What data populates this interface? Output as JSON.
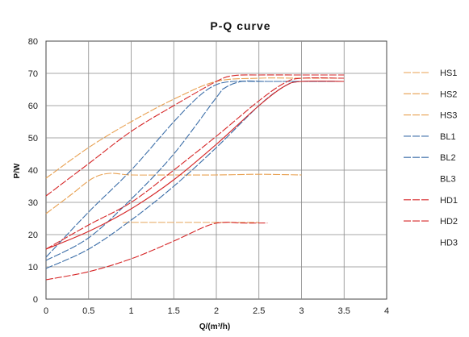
{
  "chart_data": {
    "type": "line",
    "title": "P-Q  curve",
    "xlabel": "Q/(m³/h)",
    "ylabel": "P/W",
    "xlim": [
      0,
      4
    ],
    "ylim": [
      0,
      80
    ],
    "xticks": [
      "0",
      "0.5",
      "1",
      "1.5",
      "2",
      "2.5",
      "3",
      "3.5",
      "4"
    ],
    "yticks": [
      "0",
      "10",
      "20",
      "30",
      "40",
      "50",
      "60",
      "70",
      "80"
    ],
    "grid": "vertical and horizontal gridlines",
    "legend_position": "right",
    "series": [
      {
        "name": "HS1",
        "color": "#e8a050",
        "dash": "dashed",
        "x": [
          0,
          0.5,
          1,
          1.5,
          2.0,
          2.5,
          3.0,
          3.5
        ],
        "y": [
          37.5,
          47,
          55,
          62,
          67.5,
          68.5,
          68.5,
          68.5
        ]
      },
      {
        "name": "HS2",
        "color": "#e8a050",
        "dash": "dashed",
        "x": [
          0,
          0.3,
          0.55,
          0.75,
          1.0,
          1.5,
          2.0,
          2.5,
          3.0
        ],
        "y": [
          26.5,
          32.5,
          37.5,
          39,
          38.5,
          38.5,
          38.5,
          38.7,
          38.5
        ]
      },
      {
        "name": "HS3",
        "color": "#e8b070",
        "dash": "dashed",
        "x": [
          0.9,
          1.2,
          1.6,
          2.0,
          2.2,
          2.5
        ],
        "y": [
          23.8,
          23.8,
          23.8,
          23.8,
          23.8,
          23.8
        ]
      },
      {
        "name": "BL1",
        "color": "#3c6ea8",
        "dash": "dashed",
        "x": [
          0,
          0.5,
          1.0,
          1.5,
          1.8,
          2.0,
          2.2,
          2.5,
          3.0,
          3.5
        ],
        "y": [
          13,
          27,
          40,
          55,
          63,
          66.5,
          67.5,
          67.5,
          67.5,
          67.5
        ]
      },
      {
        "name": "BL2",
        "color": "#3c6ea8",
        "dash": "dashed",
        "x": [
          0,
          0.5,
          1.0,
          1.5,
          2.0,
          2.1,
          2.3,
          2.6,
          3.0,
          3.5
        ],
        "y": [
          12,
          19,
          31,
          45,
          62.5,
          65.5,
          67.5,
          67.5,
          67.5,
          67.5
        ]
      },
      {
        "name": "BL3",
        "color": "#3c6ea8",
        "dash": "dashed",
        "x": [
          0,
          0.5,
          1.0,
          1.5,
          2.0,
          2.5,
          2.8,
          3.0,
          3.5
        ],
        "y": [
          9.5,
          15.5,
          24.5,
          35,
          47,
          60,
          66,
          67.5,
          67.5
        ]
      },
      {
        "name": "HD1",
        "color": "#d62728",
        "dash": "dashed",
        "x": [
          0,
          0.5,
          1.0,
          1.5,
          2.0,
          2.2,
          2.5,
          3.0,
          3.5
        ],
        "y": [
          32,
          42,
          52,
          60,
          67.5,
          69.3,
          69.5,
          69.5,
          69.5
        ]
      },
      {
        "name": "HD2",
        "color": "#d62728",
        "dash": "dashed",
        "x": [
          0,
          0.5,
          1.0,
          1.5,
          2.0,
          2.5,
          2.8,
          3.0,
          3.5
        ],
        "y": [
          15.5,
          23,
          30,
          40,
          50.5,
          61.5,
          67,
          68.5,
          68.5
        ]
      },
      {
        "name": "HD3",
        "color": "#d62728",
        "dash": "dashed",
        "x": [
          0,
          0.5,
          1.0,
          1.5,
          1.9,
          2.1,
          2.3,
          2.6
        ],
        "y": [
          6,
          8.5,
          12.5,
          18,
          22.8,
          23.8,
          23.6,
          23.6
        ]
      },
      {
        "name": "",
        "color": "#d62728",
        "dash": "solid",
        "x": [
          0,
          0.5,
          1.0,
          1.5,
          2.0,
          2.5,
          2.8,
          3.0,
          3.5
        ],
        "y": [
          15.5,
          21,
          28,
          37,
          48,
          60,
          66,
          67.5,
          67.5
        ]
      }
    ],
    "legend": [
      {
        "label": "HS1",
        "color": "#e8a050"
      },
      {
        "label": "HS2",
        "color": "#e8a050"
      },
      {
        "label": "HS3",
        "color": "#e8a050"
      },
      {
        "label": "BL1",
        "color": "#3c6ea8"
      },
      {
        "label": "BL2",
        "color": "#3c6ea8"
      },
      {
        "label": "BL3",
        "color": ""
      },
      {
        "label": "HD1",
        "color": "#d62728"
      },
      {
        "label": "HD2",
        "color": "#d62728"
      },
      {
        "label": "HD3",
        "color": ""
      }
    ]
  }
}
